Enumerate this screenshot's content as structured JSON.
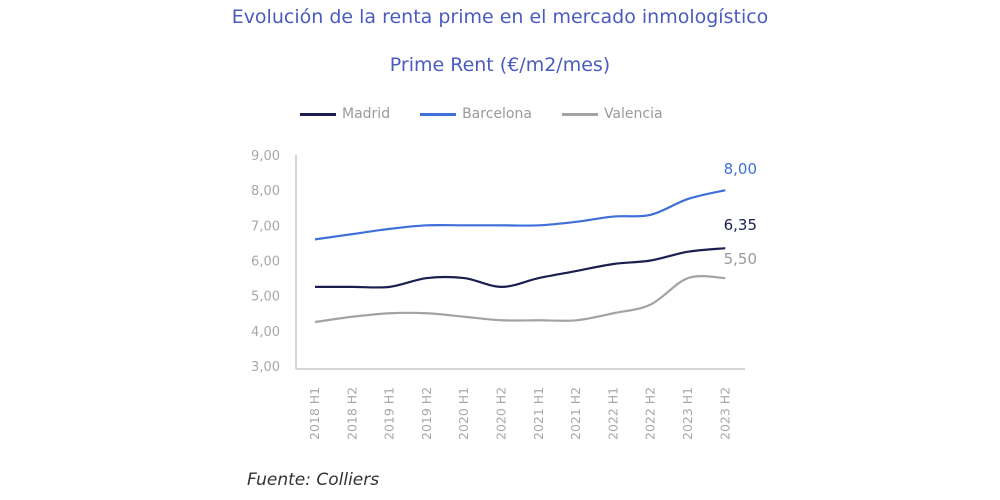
{
  "chart_data": {
    "type": "line",
    "title": "Evolución de la renta prime en el mercado inmologístico",
    "subtitle": "Prime Rent (€/m2/mes)",
    "categories": [
      "2018 H1",
      "2018 H2",
      "2019 H1",
      "2019 H2",
      "2020 H1",
      "2020 H2",
      "2021 H1",
      "2021 H2",
      "2022 H1",
      "2022 H2",
      "2023 H1",
      "2023 H2"
    ],
    "yticks": [
      "3,00",
      "4,00",
      "5,00",
      "6,00",
      "7,00",
      "8,00",
      "9,00"
    ],
    "ylim": [
      3,
      9
    ],
    "grid": false,
    "legend_position": "top",
    "series": [
      {
        "name": "Madrid",
        "color": "#1b1f4f",
        "values": [
          5.25,
          5.25,
          5.25,
          5.5,
          5.5,
          5.25,
          5.5,
          5.7,
          5.9,
          6.0,
          6.25,
          6.35
        ],
        "end_label": "6,35"
      },
      {
        "name": "Barcelona",
        "color": "#3f6fd9",
        "values": [
          6.6,
          6.75,
          6.9,
          7.0,
          7.0,
          7.0,
          7.0,
          7.1,
          7.25,
          7.3,
          7.75,
          8.0
        ],
        "end_label": "8,00"
      },
      {
        "name": "Valencia",
        "color": "#a3a3a3",
        "values": [
          4.25,
          4.4,
          4.5,
          4.5,
          4.4,
          4.3,
          4.3,
          4.3,
          4.5,
          4.75,
          5.5,
          5.5
        ],
        "end_label": "5,50"
      }
    ]
  },
  "source": "Fuente: Colliers"
}
